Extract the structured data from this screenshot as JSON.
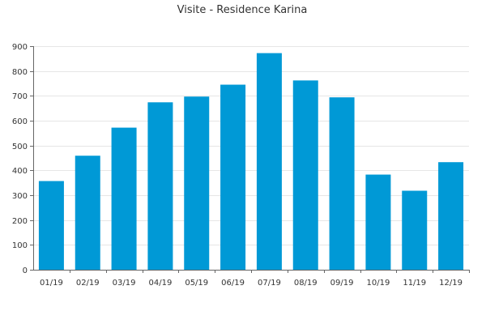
{
  "chart_data": {
    "type": "bar",
    "title": "Visite - Residence Karina",
    "xlabel": "",
    "ylabel": "",
    "categories": [
      "01/19",
      "02/19",
      "03/19",
      "04/19",
      "05/19",
      "06/19",
      "07/19",
      "08/19",
      "09/19",
      "10/19",
      "11/19",
      "12/19"
    ],
    "values": [
      357,
      459,
      572,
      674,
      697,
      745,
      872,
      762,
      694,
      383,
      318,
      433
    ],
    "ylim": [
      0,
      900
    ],
    "yticks": [
      0,
      100,
      200,
      300,
      400,
      500,
      600,
      700,
      800,
      900
    ],
    "grid": true,
    "legend": "none",
    "colors": {
      "bar": "#0099d6"
    }
  }
}
